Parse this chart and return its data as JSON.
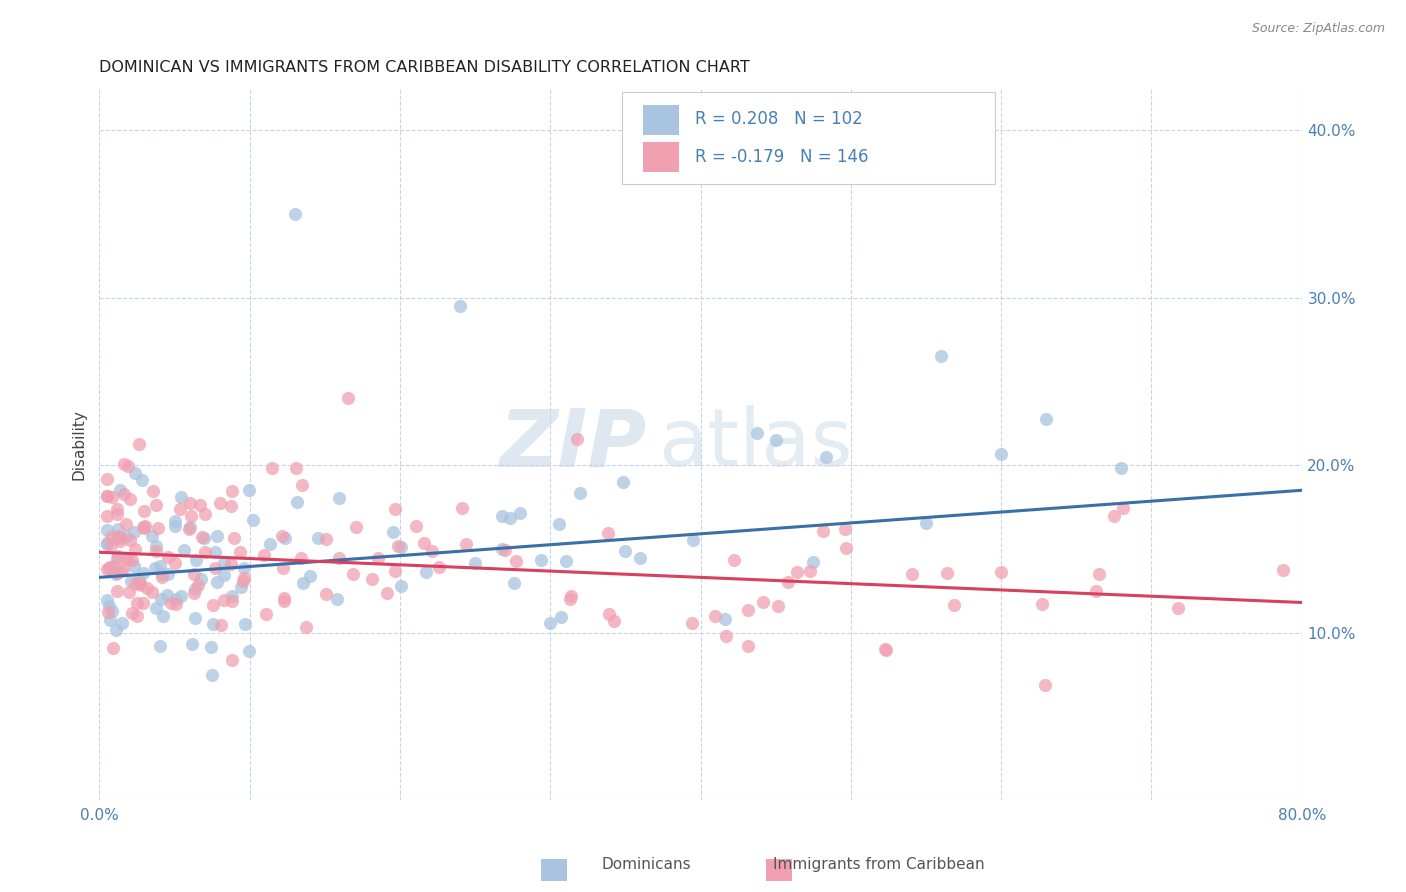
{
  "title": "DOMINICAN VS IMMIGRANTS FROM CARIBBEAN DISABILITY CORRELATION CHART",
  "source": "Source: ZipAtlas.com",
  "ylabel_label": "Disability",
  "x_min": 0.0,
  "x_max": 0.8,
  "y_min": 0.0,
  "y_max": 0.425,
  "x_ticks": [
    0.0,
    0.1,
    0.2,
    0.3,
    0.4,
    0.5,
    0.6,
    0.7,
    0.8
  ],
  "y_ticks": [
    0.0,
    0.1,
    0.2,
    0.3,
    0.4
  ],
  "blue_color": "#a8c4e0",
  "pink_color": "#f0a0b0",
  "blue_line_color": "#3a6fa8",
  "pink_line_color": "#d84060",
  "blue_r": 0.208,
  "blue_n": 102,
  "pink_r": -0.179,
  "pink_n": 146,
  "legend_label_blue": "Dominicans",
  "legend_label_pink": "Immigrants from Caribbean",
  "watermark_zip": "ZIP",
  "watermark_atlas": "atlas",
  "background_color": "#ffffff",
  "grid_color": "#c8d4e8",
  "tick_color": "#4a7fb5",
  "ylabel_color": "#444444",
  "title_color": "#222222",
  "source_color": "#888888",
  "blue_line_intercept": 0.133,
  "blue_line_end": 0.185,
  "pink_line_intercept": 0.148,
  "pink_line_end": 0.118
}
